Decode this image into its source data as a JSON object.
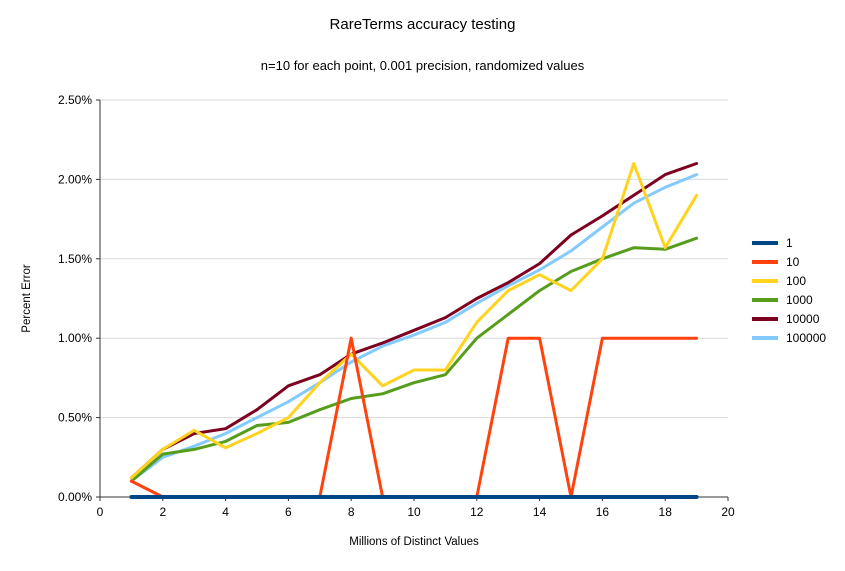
{
  "chart_data": {
    "type": "line",
    "title": "RareTerms accuracy testing",
    "subtitle": "n=10 for each point, 0.001 precision, randomized values",
    "xlabel": "Millions of Distinct Values",
    "ylabel": "Percent Error",
    "xlim": [
      0,
      20
    ],
    "ylim": [
      0,
      2.5
    ],
    "grid": "horizontal",
    "legend_position": "right",
    "gridline_color": "#d9d9d9",
    "axis_color": "#333333",
    "x_ticks": [
      {
        "value": 0,
        "label": "0"
      },
      {
        "value": 2,
        "label": "2"
      },
      {
        "value": 4,
        "label": "4"
      },
      {
        "value": 6,
        "label": "6"
      },
      {
        "value": 8,
        "label": "8"
      },
      {
        "value": 10,
        "label": "10"
      },
      {
        "value": 12,
        "label": "12"
      },
      {
        "value": 14,
        "label": "14"
      },
      {
        "value": 16,
        "label": "16"
      },
      {
        "value": 18,
        "label": "18"
      },
      {
        "value": 20,
        "label": "20"
      }
    ],
    "y_ticks": [
      {
        "value": 0,
        "label": "0.00%"
      },
      {
        "value": 0.5,
        "label": "0.50%"
      },
      {
        "value": 1,
        "label": "1.00%"
      },
      {
        "value": 1.5,
        "label": "1.50%"
      },
      {
        "value": 2,
        "label": "2.00%"
      },
      {
        "value": 2.5,
        "label": "2.50%"
      }
    ],
    "x": [
      1,
      2,
      3,
      4,
      5,
      6,
      7,
      8,
      9,
      10,
      11,
      12,
      13,
      14,
      15,
      16,
      17,
      18,
      19
    ],
    "series": [
      {
        "name": "1",
        "color": "#004586",
        "stroke_width": 4,
        "values": [
          0,
          0,
          0,
          0,
          0,
          0,
          0,
          0,
          0,
          0,
          0,
          0,
          0,
          0,
          0,
          0,
          0,
          0,
          0
        ]
      },
      {
        "name": "10",
        "color": "#FF420E",
        "stroke_width": 3,
        "values": [
          0.1,
          0,
          0,
          0,
          0,
          0,
          0,
          1.0,
          0,
          0,
          0,
          0,
          1.0,
          1.0,
          0,
          1.0,
          1.0,
          1.0,
          1.0
        ]
      },
      {
        "name": "100",
        "color": "#FFD320",
        "stroke_width": 3,
        "values": [
          0.12,
          0.3,
          0.42,
          0.31,
          0.4,
          0.5,
          0.72,
          0.9,
          0.7,
          0.8,
          0.8,
          1.1,
          1.3,
          1.4,
          1.3,
          1.5,
          2.1,
          1.57,
          1.9
        ]
      },
      {
        "name": "1000",
        "color": "#579D1C",
        "stroke_width": 3,
        "values": [
          0.1,
          0.27,
          0.3,
          0.35,
          0.45,
          0.47,
          0.55,
          0.62,
          0.65,
          0.72,
          0.77,
          1.0,
          1.15,
          1.3,
          1.42,
          1.5,
          1.57,
          1.56,
          1.63
        ]
      },
      {
        "name": "10000",
        "color": "#7E0021",
        "stroke_width": 3,
        "values": [
          0.12,
          0.3,
          0.4,
          0.43,
          0.55,
          0.7,
          0.77,
          0.9,
          0.97,
          1.05,
          1.13,
          1.25,
          1.35,
          1.47,
          1.65,
          1.77,
          1.9,
          2.03,
          2.1
        ]
      },
      {
        "name": "100000",
        "color": "#83CAFF",
        "stroke_width": 3,
        "values": [
          0.1,
          0.25,
          0.32,
          0.4,
          0.5,
          0.6,
          0.72,
          0.85,
          0.95,
          1.02,
          1.1,
          1.22,
          1.33,
          1.43,
          1.55,
          1.7,
          1.85,
          1.95,
          2.03
        ]
      }
    ]
  }
}
